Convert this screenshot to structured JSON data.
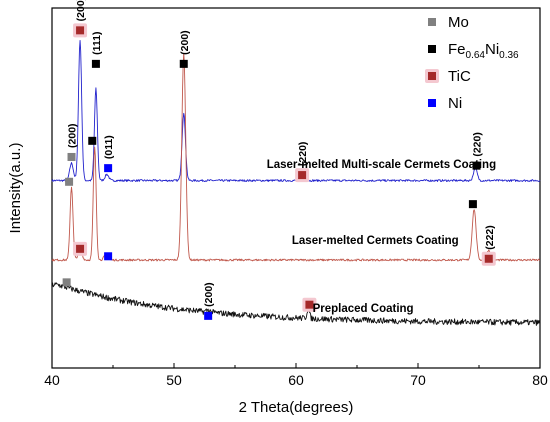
{
  "chart_data": {
    "type": "line",
    "xlabel": "2 Theta(degrees)",
    "ylabel": "Intensity(a.u.)",
    "xlim": [
      40,
      80
    ],
    "x_ticks": [
      "40",
      "50",
      "60",
      "70",
      "80"
    ],
    "y_ticks_labeled": false,
    "legend": {
      "position": "top-right",
      "entries": [
        {
          "name": "Mo",
          "color": "#808080",
          "style": "plain"
        },
        {
          "name": "Fe",
          "sub1": "0.64",
          "name2": "Ni",
          "sub2": "0.36",
          "color": "#000000",
          "style": "plain"
        },
        {
          "name": "TiC",
          "color": "#a52a2a",
          "style": "halo"
        },
        {
          "name": "Ni",
          "color": "#0000ff",
          "style": "plain"
        }
      ]
    },
    "series": [
      {
        "name": "Laser-melted Multi-scale  Cermets Coating",
        "color": "#2222cc",
        "baseline": 0.755,
        "noise": 0.004,
        "peaks": [
          {
            "x": 41.6,
            "h": 0.07,
            "w": 0.15
          },
          {
            "x": 42.3,
            "h": 0.565,
            "w": 0.13
          },
          {
            "x": 43.6,
            "h": 0.37,
            "w": 0.12
          },
          {
            "x": 44.5,
            "h": 0.025,
            "w": 0.15
          },
          {
            "x": 50.8,
            "h": 0.27,
            "w": 0.14
          },
          {
            "x": 60.5,
            "h": 0.006,
            "w": 0.2
          },
          {
            "x": 74.7,
            "h": 0.05,
            "w": 0.15
          }
        ]
      },
      {
        "name": "Laser-melted Cermets Coating",
        "color": "#c0584c",
        "baseline": 0.435,
        "noise": 0.004,
        "peaks": [
          {
            "x": 41.6,
            "h": 0.295,
            "w": 0.12
          },
          {
            "x": 42.3,
            "h": 0.05,
            "w": 0.15
          },
          {
            "x": 43.5,
            "h": 0.455,
            "w": 0.12
          },
          {
            "x": 44.4,
            "h": 0.02,
            "w": 0.15
          },
          {
            "x": 50.8,
            "h": 0.83,
            "w": 0.16
          },
          {
            "x": 74.6,
            "h": 0.205,
            "w": 0.16
          },
          {
            "x": 75.8,
            "h": 0.04,
            "w": 0.15
          }
        ]
      },
      {
        "name": "Preplaced Coating",
        "color": "#111111",
        "baseline": 0.18,
        "noise": 0.012,
        "decay": {
          "start_x": 40.5,
          "start_y": 0.335,
          "end_x": 80,
          "end_y": 0.18,
          "tau": 10
        },
        "peaks": [
          {
            "x": 61.0,
            "h": 0.04,
            "w": 0.1
          },
          {
            "x": 52.8,
            "h": 0.008,
            "w": 0.15
          }
        ]
      }
    ],
    "markers": [
      {
        "x": 42.3,
        "y": 1.36,
        "color": "#a52a2a",
        "halo": true,
        "label": "(200)"
      },
      {
        "x": 43.6,
        "y": 1.225,
        "color": "#000000",
        "label": "(111)"
      },
      {
        "x": 50.8,
        "y": 1.225,
        "color": "#000000",
        "label": "(200)"
      },
      {
        "x": 41.6,
        "y": 0.85,
        "color": "#808080",
        "label": "(200)"
      },
      {
        "x": 44.6,
        "y": 0.805,
        "color": "#0000ff",
        "label": "(011)"
      },
      {
        "x": 60.5,
        "y": 0.777,
        "color": "#a52a2a",
        "halo": true,
        "label": "(220)"
      },
      {
        "x": 74.8,
        "y": 0.815,
        "color": "#000000",
        "label": "(220)"
      },
      {
        "x": 43.3,
        "y": 0.915,
        "color": "#000000",
        "label": ""
      },
      {
        "x": 41.4,
        "y": 0.75,
        "color": "#808080",
        "label": ""
      },
      {
        "x": 42.3,
        "y": 0.48,
        "color": "#a52a2a",
        "halo": true,
        "label": ""
      },
      {
        "x": 44.6,
        "y": 0.45,
        "color": "#0000ff",
        "label": ""
      },
      {
        "x": 74.5,
        "y": 0.66,
        "color": "#000000",
        "label": ""
      },
      {
        "x": 75.8,
        "y": 0.44,
        "color": "#a52a2a",
        "halo": true,
        "label": "(222)"
      },
      {
        "x": 41.2,
        "y": 0.345,
        "color": "#808080",
        "label": ""
      },
      {
        "x": 52.8,
        "y": 0.21,
        "color": "#0000ff",
        "label": "(200)"
      },
      {
        "x": 61.1,
        "y": 0.255,
        "color": "#a52a2a",
        "halo": true,
        "label": ""
      }
    ],
    "curve_labels": [
      {
        "text": "Laser-melted Multi-scale  Cermets Coating",
        "x": 67.0,
        "y": 0.805
      },
      {
        "text": "Laser-melted Cermets Coating",
        "x": 66.5,
        "y": 0.5
      },
      {
        "text": "Preplaced Coating",
        "x": 65.5,
        "y": 0.225
      }
    ]
  }
}
